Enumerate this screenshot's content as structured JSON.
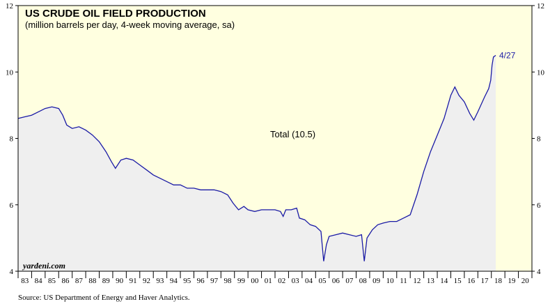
{
  "chart_data": {
    "type": "area",
    "title": "US CRUDE OIL FIELD PRODUCTION",
    "subtitle": "(million barrels per day, 4-week moving average, sa)",
    "series": [
      {
        "name": "Total (10.5)",
        "end_label": "4/27",
        "color": "#1a1aa6",
        "fill": "#efefef",
        "points": [
          [
            1983.0,
            8.6
          ],
          [
            1983.5,
            8.65
          ],
          [
            1984.0,
            8.7
          ],
          [
            1984.5,
            8.8
          ],
          [
            1985.0,
            8.9
          ],
          [
            1985.5,
            8.95
          ],
          [
            1986.0,
            8.9
          ],
          [
            1986.3,
            8.7
          ],
          [
            1986.6,
            8.4
          ],
          [
            1987.0,
            8.3
          ],
          [
            1987.5,
            8.35
          ],
          [
            1988.0,
            8.25
          ],
          [
            1988.5,
            8.1
          ],
          [
            1989.0,
            7.9
          ],
          [
            1989.5,
            7.6
          ],
          [
            1989.9,
            7.3
          ],
          [
            1990.2,
            7.1
          ],
          [
            1990.6,
            7.35
          ],
          [
            1991.0,
            7.4
          ],
          [
            1991.5,
            7.35
          ],
          [
            1992.0,
            7.2
          ],
          [
            1992.5,
            7.05
          ],
          [
            1993.0,
            6.9
          ],
          [
            1993.5,
            6.8
          ],
          [
            1994.0,
            6.7
          ],
          [
            1994.5,
            6.6
          ],
          [
            1995.0,
            6.6
          ],
          [
            1995.5,
            6.5
          ],
          [
            1996.0,
            6.5
          ],
          [
            1996.5,
            6.45
          ],
          [
            1997.0,
            6.45
          ],
          [
            1997.5,
            6.45
          ],
          [
            1998.0,
            6.4
          ],
          [
            1998.5,
            6.3
          ],
          [
            1998.9,
            6.05
          ],
          [
            1999.3,
            5.85
          ],
          [
            1999.7,
            5.95
          ],
          [
            2000.0,
            5.85
          ],
          [
            2000.5,
            5.8
          ],
          [
            2001.0,
            5.85
          ],
          [
            2001.5,
            5.85
          ],
          [
            2002.0,
            5.85
          ],
          [
            2002.4,
            5.8
          ],
          [
            2002.6,
            5.65
          ],
          [
            2002.8,
            5.85
          ],
          [
            2003.2,
            5.85
          ],
          [
            2003.6,
            5.9
          ],
          [
            2003.8,
            5.6
          ],
          [
            2004.2,
            5.55
          ],
          [
            2004.6,
            5.4
          ],
          [
            2005.0,
            5.35
          ],
          [
            2005.4,
            5.2
          ],
          [
            2005.6,
            4.3
          ],
          [
            2005.8,
            4.8
          ],
          [
            2006.0,
            5.05
          ],
          [
            2006.5,
            5.1
          ],
          [
            2007.0,
            5.15
          ],
          [
            2007.5,
            5.1
          ],
          [
            2008.0,
            5.05
          ],
          [
            2008.4,
            5.1
          ],
          [
            2008.6,
            4.3
          ],
          [
            2008.8,
            5.0
          ],
          [
            2009.2,
            5.25
          ],
          [
            2009.6,
            5.4
          ],
          [
            2010.0,
            5.45
          ],
          [
            2010.5,
            5.5
          ],
          [
            2011.0,
            5.5
          ],
          [
            2011.5,
            5.6
          ],
          [
            2012.0,
            5.7
          ],
          [
            2012.5,
            6.3
          ],
          [
            2013.0,
            7.0
          ],
          [
            2013.5,
            7.6
          ],
          [
            2014.0,
            8.1
          ],
          [
            2014.5,
            8.6
          ],
          [
            2015.0,
            9.3
          ],
          [
            2015.3,
            9.55
          ],
          [
            2015.6,
            9.3
          ],
          [
            2016.0,
            9.1
          ],
          [
            2016.4,
            8.75
          ],
          [
            2016.7,
            8.55
          ],
          [
            2017.0,
            8.8
          ],
          [
            2017.5,
            9.25
          ],
          [
            2017.8,
            9.5
          ],
          [
            2017.95,
            9.75
          ],
          [
            2018.05,
            10.2
          ],
          [
            2018.15,
            10.45
          ],
          [
            2018.32,
            10.5
          ]
        ]
      }
    ],
    "x_ticks": [
      "83",
      "84",
      "85",
      "86",
      "87",
      "88",
      "89",
      "90",
      "91",
      "92",
      "93",
      "94",
      "95",
      "96",
      "97",
      "98",
      "99",
      "00",
      "01",
      "02",
      "03",
      "04",
      "05",
      "06",
      "07",
      "08",
      "09",
      "10",
      "11",
      "12",
      "13",
      "14",
      "15",
      "16",
      "17",
      "18",
      "19",
      "20"
    ],
    "x_range": [
      1983,
      2021
    ],
    "y_ticks": [
      "4",
      "6",
      "8",
      "10",
      "12"
    ],
    "ylim": [
      4,
      12
    ],
    "y_axis_both_sides": true,
    "background": "#ffffe0",
    "grid": false
  },
  "watermark": "yardeni.com",
  "source": "Source: US Department of Energy and Haver Analytics."
}
